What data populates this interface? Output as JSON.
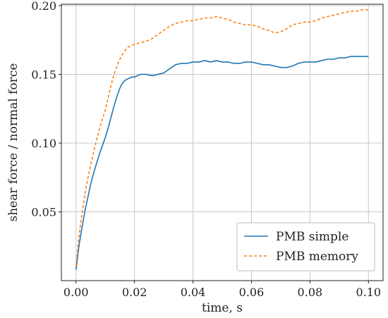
{
  "chart_data": {
    "type": "line",
    "title": "",
    "xlabel": "time, s",
    "ylabel": "shear force / normal force",
    "xlim": [
      -0.005,
      0.105
    ],
    "ylim": [
      0.0,
      0.201
    ],
    "xticks": [
      0.0,
      0.02,
      0.04,
      0.06,
      0.08,
      0.1
    ],
    "xtick_labels": [
      "0.00",
      "0.02",
      "0.04",
      "0.06",
      "0.08",
      "0.10"
    ],
    "yticks": [
      0.05,
      0.1,
      0.15,
      0.2
    ],
    "ytick_labels": [
      "0.05",
      "0.10",
      "0.15",
      "0.20"
    ],
    "grid": true,
    "legend_position": "bottom-right",
    "series": [
      {
        "name": "PMB simple",
        "color": "#1f77b4",
        "dash": "solid",
        "x": [
          0.0,
          0.001,
          0.002,
          0.003,
          0.004,
          0.005,
          0.006,
          0.007,
          0.008,
          0.009,
          0.01,
          0.011,
          0.012,
          0.013,
          0.014,
          0.015,
          0.016,
          0.017,
          0.018,
          0.019,
          0.02,
          0.022,
          0.024,
          0.026,
          0.028,
          0.03,
          0.032,
          0.034,
          0.036,
          0.038,
          0.04,
          0.042,
          0.044,
          0.046,
          0.048,
          0.05,
          0.052,
          0.054,
          0.056,
          0.058,
          0.06,
          0.062,
          0.064,
          0.066,
          0.068,
          0.07,
          0.072,
          0.074,
          0.076,
          0.078,
          0.08,
          0.082,
          0.084,
          0.086,
          0.088,
          0.09,
          0.092,
          0.094,
          0.096,
          0.098,
          0.1
        ],
        "y": [
          0.008,
          0.025,
          0.038,
          0.05,
          0.06,
          0.07,
          0.078,
          0.085,
          0.092,
          0.098,
          0.104,
          0.111,
          0.119,
          0.127,
          0.134,
          0.14,
          0.144,
          0.146,
          0.147,
          0.148,
          0.148,
          0.15,
          0.15,
          0.149,
          0.15,
          0.151,
          0.154,
          0.157,
          0.158,
          0.158,
          0.159,
          0.159,
          0.16,
          0.159,
          0.16,
          0.159,
          0.159,
          0.158,
          0.158,
          0.159,
          0.159,
          0.158,
          0.157,
          0.157,
          0.156,
          0.155,
          0.155,
          0.156,
          0.158,
          0.159,
          0.159,
          0.159,
          0.16,
          0.161,
          0.161,
          0.162,
          0.162,
          0.163,
          0.163,
          0.163,
          0.163
        ]
      },
      {
        "name": "PMB memory",
        "color": "#ff7f0e",
        "dash": "dashed",
        "x": [
          0.0,
          0.001,
          0.002,
          0.003,
          0.004,
          0.005,
          0.006,
          0.007,
          0.008,
          0.009,
          0.01,
          0.011,
          0.012,
          0.013,
          0.014,
          0.015,
          0.016,
          0.017,
          0.018,
          0.019,
          0.02,
          0.022,
          0.024,
          0.026,
          0.028,
          0.03,
          0.032,
          0.034,
          0.036,
          0.038,
          0.04,
          0.042,
          0.044,
          0.046,
          0.048,
          0.05,
          0.052,
          0.054,
          0.056,
          0.058,
          0.06,
          0.062,
          0.064,
          0.066,
          0.068,
          0.07,
          0.072,
          0.074,
          0.076,
          0.078,
          0.08,
          0.082,
          0.084,
          0.086,
          0.088,
          0.09,
          0.092,
          0.094,
          0.096,
          0.098,
          0.1
        ],
        "y": [
          0.01,
          0.032,
          0.048,
          0.062,
          0.074,
          0.084,
          0.093,
          0.102,
          0.11,
          0.117,
          0.124,
          0.133,
          0.142,
          0.15,
          0.156,
          0.161,
          0.165,
          0.168,
          0.17,
          0.171,
          0.172,
          0.173,
          0.174,
          0.176,
          0.179,
          0.182,
          0.185,
          0.187,
          0.188,
          0.189,
          0.189,
          0.19,
          0.191,
          0.191,
          0.192,
          0.191,
          0.19,
          0.188,
          0.187,
          0.186,
          0.186,
          0.185,
          0.183,
          0.182,
          0.18,
          0.181,
          0.183,
          0.186,
          0.187,
          0.188,
          0.188,
          0.189,
          0.191,
          0.192,
          0.193,
          0.194,
          0.195,
          0.196,
          0.196,
          0.197,
          0.197
        ]
      }
    ]
  }
}
